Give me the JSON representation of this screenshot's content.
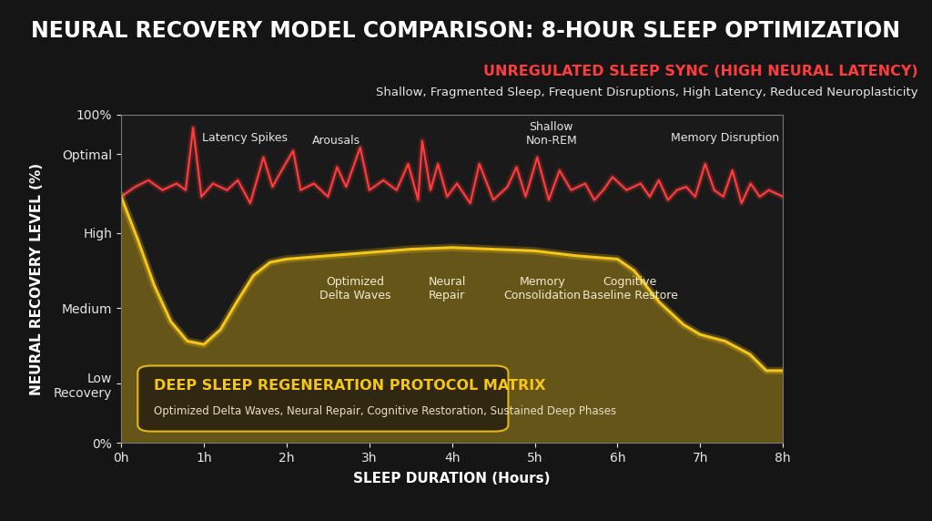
{
  "chart_data": {
    "type": "line",
    "title": "NEURAL RECOVERY MODEL COMPARISON: 8-HOUR SLEEP OPTIMIZATION",
    "x_label": "SLEEP DURATION (Hours)",
    "y_label": "NEURAL RECOVERY LEVEL (%)",
    "xlim": [
      0,
      8
    ],
    "xticks": [
      {
        "value": 0,
        "label": "0h"
      },
      {
        "value": 1,
        "label": "1h"
      },
      {
        "value": 2,
        "label": "2h"
      },
      {
        "value": 3,
        "label": "3h"
      },
      {
        "value": 4,
        "label": "4h"
      },
      {
        "value": 5,
        "label": "5h"
      },
      {
        "value": 6,
        "label": "6h"
      },
      {
        "value": 7,
        "label": "7h"
      },
      {
        "value": 8,
        "label": "8h"
      }
    ],
    "ylim": [
      0,
      100
    ],
    "yticks": [
      {
        "value": 0,
        "label": "0%"
      },
      {
        "value": 18,
        "label": "Low\nRecovery"
      },
      {
        "value": 41,
        "label": "Medium"
      },
      {
        "value": 64,
        "label": "High"
      },
      {
        "value": 88,
        "label": "Optimal"
      },
      {
        "value": 100,
        "label": "100%"
      }
    ],
    "grid": false,
    "series": [
      {
        "name": "UNREGULATED SLEEP SYNC (HIGH NEURAL LATENCY)",
        "description": "Shallow, Fragmented Sleep, Frequent Disruptions, High Latency, Reduced Neuroplasticity",
        "type": "line",
        "color": "#ff3b3b",
        "line_style": "solid",
        "x": [
          0,
          0.17,
          0.33,
          0.5,
          0.67,
          0.78,
          0.87,
          0.97,
          1.11,
          1.28,
          1.41,
          1.56,
          1.72,
          1.83,
          1.94,
          2.08,
          2.17,
          2.33,
          2.5,
          2.61,
          2.72,
          2.89,
          3.0,
          3.17,
          3.33,
          3.47,
          3.59,
          3.64,
          3.74,
          3.83,
          3.94,
          4.06,
          4.22,
          4.33,
          4.5,
          4.67,
          4.78,
          4.89,
          5.03,
          5.17,
          5.3,
          5.44,
          5.61,
          5.72,
          5.83,
          5.94,
          6.11,
          6.28,
          6.39,
          6.5,
          6.61,
          6.72,
          6.83,
          6.94,
          7.06,
          7.17,
          7.28,
          7.39,
          7.5,
          7.61,
          7.72,
          7.83,
          8.0
        ],
        "values": [
          75,
          78,
          80,
          77,
          79,
          77,
          96,
          75,
          79,
          77,
          80,
          73,
          87,
          78,
          83,
          89,
          77,
          79,
          75,
          84,
          78,
          90,
          77,
          80,
          77,
          85,
          74,
          92,
          77,
          85,
          75,
          79,
          73,
          85,
          74,
          78,
          84,
          75,
          87,
          74,
          83,
          77,
          79,
          74,
          77,
          81,
          77,
          79,
          75,
          80,
          74,
          77,
          78,
          75,
          85,
          77,
          75,
          83,
          73,
          79,
          75,
          77,
          75
        ],
        "annotations": [
          {
            "text": "Latency Spikes",
            "x": 1.5,
            "y": 93
          },
          {
            "text": "Arousals",
            "x": 2.6,
            "y": 92
          },
          {
            "text": "Shallow\nNon-REM",
            "x": 5.2,
            "y": 94
          },
          {
            "text": "Memory Disruption",
            "x": 7.3,
            "y": 93
          }
        ]
      },
      {
        "name": "DEEP SLEEP REGENERATION PROTOCOL MATRIX",
        "description": "Optimized Delta Waves, Neural Repair, Cognitive Restoration, Sustained Deep Phases",
        "type": "area",
        "color": "#f5c518",
        "line_style": "solid",
        "x": [
          0,
          0.2,
          0.4,
          0.6,
          0.8,
          1.0,
          1.2,
          1.4,
          1.6,
          1.8,
          2.0,
          2.5,
          3.0,
          3.5,
          4.0,
          4.5,
          5.0,
          5.5,
          6.0,
          6.2,
          6.5,
          6.8,
          7.0,
          7.3,
          7.6,
          7.8,
          8.0
        ],
        "values": [
          75,
          62,
          48,
          37,
          31,
          30,
          34.5,
          43,
          51,
          55,
          56,
          57,
          58,
          59,
          59.5,
          59,
          58.5,
          57,
          56,
          52.5,
          43,
          36,
          33,
          31,
          27,
          22,
          22
        ],
        "annotations": [
          {
            "text": "Optimized\nDelta Waves",
            "x": 2.83,
            "y": 47
          },
          {
            "text": "Neural\nRepair",
            "x": 3.94,
            "y": 47
          },
          {
            "text": "Memory\nConsolidation",
            "x": 5.09,
            "y": 47
          },
          {
            "text": "Cognitive\nBaseline Restore",
            "x": 6.15,
            "y": 47
          }
        ]
      }
    ]
  }
}
